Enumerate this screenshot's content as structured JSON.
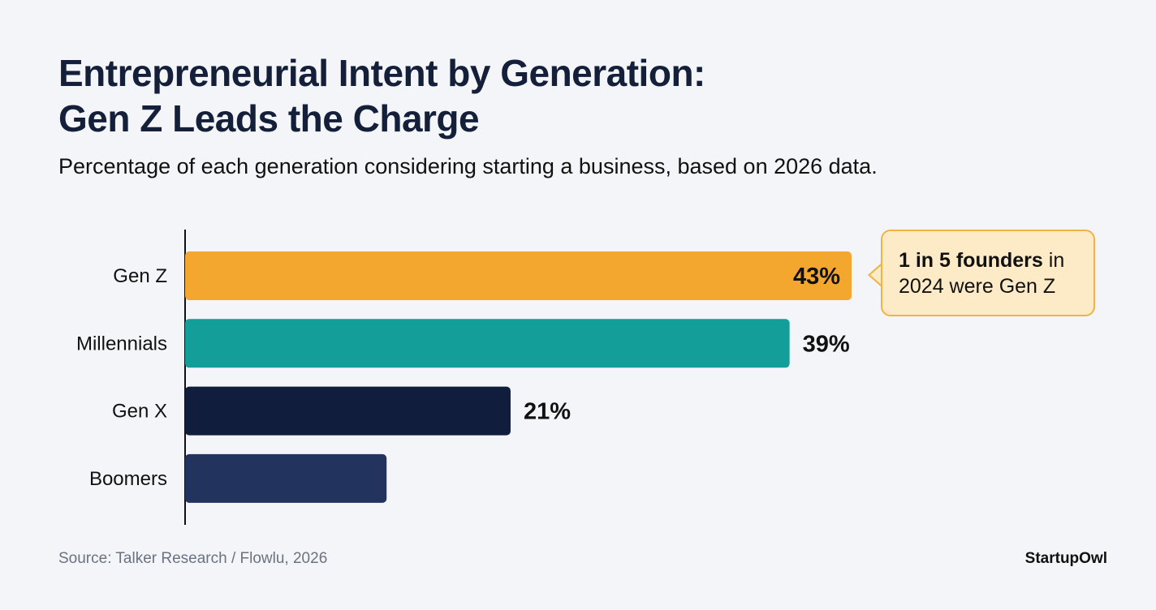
{
  "chart_data": {
    "type": "bar",
    "orientation": "horizontal",
    "title": "Entrepreneurial Intent by Generation: Gen Z Leads the Charge",
    "title_lines": [
      "Entrepreneurial Intent by Generation:",
      "Gen Z Leads the Charge"
    ],
    "subtitle": "Percentage of each generation considering starting a business, based on 2026 data.",
    "categories": [
      "Gen Z",
      "Millennials",
      "Gen X",
      "Boomers"
    ],
    "values": [
      43,
      39,
      21,
      13
    ],
    "data_labels": [
      "43%",
      "39%",
      "21%",
      ""
    ],
    "colors": [
      "#f3a72e",
      "#139e99",
      "#101d3c",
      "#22335e"
    ],
    "xlim": [
      0,
      43
    ],
    "grid": false,
    "annotation": {
      "bold": "1 in 5 founders",
      "rest_line1": " in",
      "line2": "2024 were Gen Z",
      "target": "Gen Z"
    }
  },
  "footer": {
    "source": "Source: Talker Research / Flowlu, 2026",
    "brand": "StartupOwl"
  }
}
